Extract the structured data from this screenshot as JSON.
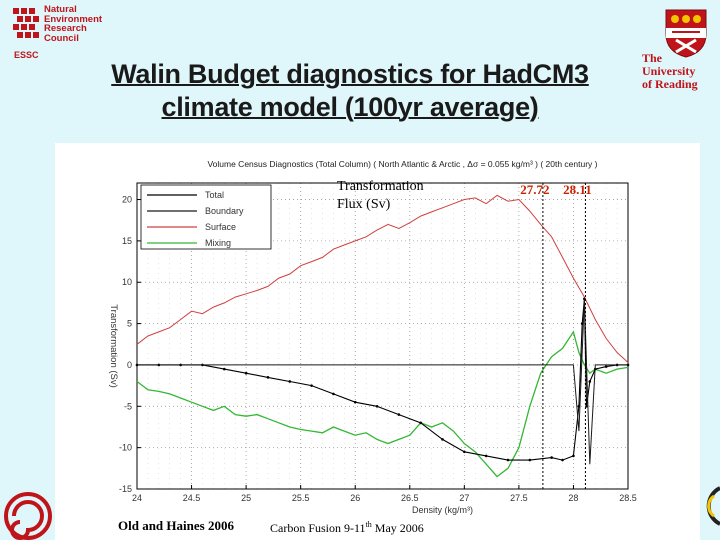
{
  "logos": {
    "nerc": [
      "Natural",
      "Environment",
      "Research",
      "Council"
    ],
    "essc": "ESSC",
    "university": [
      "The",
      "University",
      "of Reading"
    ]
  },
  "slide": {
    "title_line1": "Walin Budget diagnostics for HadCM3",
    "title_line2": "climate model (100yr average)"
  },
  "footer": {
    "credit": "Old and Haines 2006",
    "meeting_prefix": "Carbon Fusion 9-11",
    "meeting_sup": "th",
    "meeting_suffix": " May 2006"
  },
  "colors": {
    "background": "#dff7fb",
    "title": "#1a1a1a",
    "logo_red": "#c0141b",
    "total": "#000000",
    "boundary": "#1a1a1a",
    "surface": "#d04040",
    "mixing": "#33b833",
    "density_marker_text": "#cc2200"
  },
  "chart_data": {
    "type": "line",
    "title": "Volume Census Diagnostics (Total Column) ( North Atlantic & Arctic , Δσ = 0.055 kg/m³ ) ( 20th century )",
    "xlabel": "Density (kg/m³)",
    "ylabel": "Transformation (Sv)",
    "annotation": [
      "Transformation",
      "Flux (Sv)"
    ],
    "density_markers": [
      "27.72",
      "28.11"
    ],
    "density_marker_values": [
      27.72,
      28.11
    ],
    "xlim": [
      24,
      28.5
    ],
    "ylim": [
      -15,
      22
    ],
    "xticks": [
      "24",
      "24.5",
      "25",
      "25.5",
      "26",
      "26.5",
      "27",
      "27.5",
      "28",
      "28.5"
    ],
    "xtick_values": [
      24,
      24.5,
      25,
      25.5,
      26,
      26.5,
      27,
      27.5,
      28,
      28.5
    ],
    "yticks": [
      "20",
      "15",
      "10",
      "5",
      "0",
      "-5",
      "-10",
      "-15"
    ],
    "ytick_values": [
      20,
      15,
      10,
      5,
      0,
      -5,
      -10,
      -15
    ],
    "legend": [
      "Total",
      "Boundary",
      "Surface",
      "Mixing"
    ],
    "grid": true,
    "series": [
      {
        "name": "Surface",
        "x": [
          24.0,
          24.1,
          24.2,
          24.3,
          24.4,
          24.5,
          24.6,
          24.7,
          24.8,
          24.9,
          25.0,
          25.1,
          25.2,
          25.3,
          25.4,
          25.5,
          25.6,
          25.7,
          25.8,
          25.9,
          26.0,
          26.1,
          26.2,
          26.3,
          26.4,
          26.5,
          26.6,
          26.7,
          26.8,
          26.9,
          27.0,
          27.1,
          27.2,
          27.3,
          27.4,
          27.5,
          27.6,
          27.7,
          27.8,
          27.9,
          28.0,
          28.1,
          28.2,
          28.3,
          28.4,
          28.5
        ],
        "y": [
          2.5,
          3.5,
          4.0,
          4.5,
          5.5,
          6.5,
          6.2,
          7.0,
          7.5,
          8.2,
          8.6,
          9.0,
          9.5,
          10.5,
          11.0,
          12.0,
          12.5,
          13.0,
          14.0,
          14.5,
          15.0,
          15.5,
          16.3,
          17.0,
          16.5,
          17.2,
          18.0,
          18.5,
          19.0,
          19.5,
          20.0,
          20.2,
          19.5,
          20.5,
          19.8,
          20.0,
          18.6,
          17.0,
          15.5,
          13.0,
          10.5,
          8.2,
          5.5,
          3.2,
          1.5,
          0.3
        ]
      },
      {
        "name": "Mixing",
        "x": [
          24.0,
          24.1,
          24.2,
          24.3,
          24.4,
          24.5,
          24.6,
          24.7,
          24.8,
          24.9,
          25.0,
          25.1,
          25.2,
          25.3,
          25.4,
          25.5,
          25.6,
          25.7,
          25.8,
          25.9,
          26.0,
          26.1,
          26.2,
          26.3,
          26.4,
          26.5,
          26.6,
          26.7,
          26.8,
          26.9,
          27.0,
          27.1,
          27.2,
          27.3,
          27.4,
          27.5,
          27.6,
          27.7,
          27.8,
          27.9,
          28.0,
          28.05,
          28.1,
          28.15,
          28.2,
          28.3,
          28.4,
          28.5
        ],
        "y": [
          -2.0,
          -3.0,
          -3.2,
          -3.5,
          -4.0,
          -4.5,
          -5.0,
          -5.5,
          -5.0,
          -6.0,
          -6.2,
          -6.0,
          -6.5,
          -7.0,
          -7.5,
          -7.8,
          -8.0,
          -8.2,
          -7.5,
          -8.0,
          -8.5,
          -8.2,
          -9.0,
          -9.5,
          -9.0,
          -8.5,
          -7.0,
          -7.5,
          -7.0,
          -8.0,
          -9.5,
          -10.5,
          -12.0,
          -13.5,
          -12.5,
          -10.0,
          -5.0,
          -1.0,
          1.0,
          2.0,
          4.0,
          1.5,
          0.0,
          -1.0,
          -0.5,
          -1.0,
          -0.5,
          -0.3
        ]
      },
      {
        "name": "Total",
        "x": [
          24.0,
          24.2,
          24.4,
          24.6,
          24.8,
          25.0,
          25.2,
          25.4,
          25.6,
          25.8,
          26.0,
          26.2,
          26.4,
          26.6,
          26.8,
          27.0,
          27.2,
          27.4,
          27.6,
          27.8,
          27.9,
          28.0,
          28.05,
          28.08,
          28.1,
          28.12,
          28.15,
          28.2,
          28.3,
          28.4,
          28.5
        ],
        "y": [
          0.0,
          0.0,
          0.0,
          0.0,
          -0.5,
          -1.0,
          -1.5,
          -2.0,
          -2.5,
          -3.5,
          -4.5,
          -5.0,
          -6.0,
          -7.0,
          -9.0,
          -10.5,
          -11.0,
          -11.5,
          -11.5,
          -11.2,
          -11.5,
          -11.0,
          -5.0,
          5.0,
          8.0,
          -5.0,
          -2.0,
          -0.5,
          -0.2,
          0.0,
          0.0
        ]
      },
      {
        "name": "Boundary",
        "x": [
          24.0,
          24.5,
          25.0,
          25.5,
          26.0,
          26.5,
          27.0,
          27.5,
          27.9,
          28.0,
          28.05,
          28.1,
          28.15,
          28.2,
          28.3,
          28.5
        ],
        "y": [
          0.0,
          0.0,
          0.0,
          0.0,
          0.0,
          0.0,
          0.0,
          0.0,
          0.0,
          0.0,
          -8.0,
          8.0,
          -12.0,
          0.0,
          0.0,
          0.0
        ]
      }
    ]
  }
}
